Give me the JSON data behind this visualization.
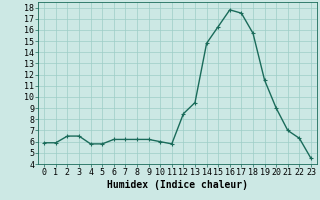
{
  "x": [
    0,
    1,
    2,
    3,
    4,
    5,
    6,
    7,
    8,
    9,
    10,
    11,
    12,
    13,
    14,
    15,
    16,
    17,
    18,
    19,
    20,
    21,
    22,
    23
  ],
  "y": [
    5.9,
    5.9,
    6.5,
    6.5,
    5.8,
    5.8,
    6.2,
    6.2,
    6.2,
    6.2,
    6.0,
    5.8,
    8.5,
    9.5,
    14.8,
    16.3,
    17.8,
    17.5,
    15.7,
    11.5,
    9.0,
    7.0,
    6.3,
    4.5
  ],
  "line_color": "#1a6b5a",
  "marker": "+",
  "marker_size": 3.5,
  "marker_linewidth": 0.8,
  "bg_color": "#cce8e4",
  "grid_color": "#9ecdc7",
  "xlabel": "Humidex (Indice chaleur)",
  "xlabel_fontsize": 7,
  "ylim": [
    4,
    18.5
  ],
  "xlim": [
    -0.5,
    23.5
  ],
  "yticks": [
    4,
    5,
    6,
    7,
    8,
    9,
    10,
    11,
    12,
    13,
    14,
    15,
    16,
    17,
    18
  ],
  "xticks": [
    0,
    1,
    2,
    3,
    4,
    5,
    6,
    7,
    8,
    9,
    10,
    11,
    12,
    13,
    14,
    15,
    16,
    17,
    18,
    19,
    20,
    21,
    22,
    23
  ],
  "tick_fontsize": 6,
  "line_width": 1.0
}
